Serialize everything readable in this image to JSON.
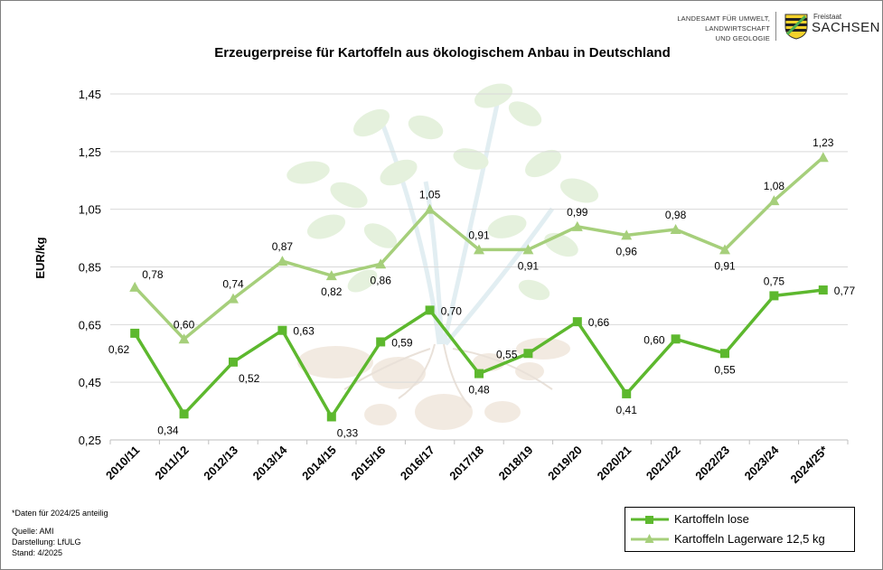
{
  "header": {
    "logo_line1": "LANDESAMT FÜR UMWELT,",
    "logo_line2": "LANDWIRTSCHAFT",
    "logo_line3": "UND GEOLOGIE",
    "logo_freistaat": "Freistaat",
    "logo_sachsen": "SACHSEN"
  },
  "footer": {
    "footnote": "*Daten  für 2024/25 anteilig",
    "source": "Quelle:  AMI",
    "author": "Darstellung: LfULG",
    "date": "Stand: 4/2025"
  },
  "colors": {
    "lose": "#5db82e",
    "lager": "#a6cf7b",
    "grid": "#d9d9d9"
  },
  "chart_data": {
    "type": "line",
    "title": "Erzeugerpreise für Kartoffeln aus ökologischem Anbau in Deutschland",
    "ylabel": "EUR/kg",
    "xlabel": "",
    "ylim": [
      0.25,
      1.45
    ],
    "yticks": [
      "0,25",
      "0,45",
      "0,65",
      "0,85",
      "1,05",
      "1,25",
      "1,45"
    ],
    "grid": true,
    "legend_position": "bottom-right",
    "categories": [
      "2010/11",
      "2011/12",
      "2012/13",
      "2013/14",
      "2014/15",
      "2015/16",
      "2016/17",
      "2017/18",
      "2018/19",
      "2019/20",
      "2020/21",
      "2021/22",
      "2022/23",
      "2023/24",
      "2024/25*"
    ],
    "series": [
      {
        "name": "Kartoffeln lose",
        "marker": "square",
        "values": [
          0.62,
          0.34,
          0.52,
          0.63,
          0.33,
          0.59,
          0.7,
          0.48,
          0.55,
          0.66,
          0.41,
          0.6,
          0.55,
          0.75,
          0.77
        ],
        "labels": [
          "0,62",
          "0,34",
          "0,52",
          "0,63",
          "0,33",
          "0,59",
          "0,70",
          "0,48",
          "0,55",
          "0,66",
          "0,41",
          "0,60",
          "0,55",
          "0,75",
          "0,77"
        ]
      },
      {
        "name": "Kartoffeln Lagerware 12,5 kg",
        "marker": "triangle",
        "values": [
          0.78,
          0.6,
          0.74,
          0.87,
          0.82,
          0.86,
          1.05,
          0.91,
          0.91,
          0.99,
          0.96,
          0.98,
          0.91,
          1.08,
          1.23
        ],
        "labels": [
          "0,78",
          "0,60",
          "0,74",
          "0,87",
          "0,82",
          "0,86",
          "1,05",
          "0,91",
          "0,91",
          "0,99",
          "0,96",
          "0,98",
          "0,91",
          "1,08",
          "1,23"
        ]
      }
    ]
  }
}
